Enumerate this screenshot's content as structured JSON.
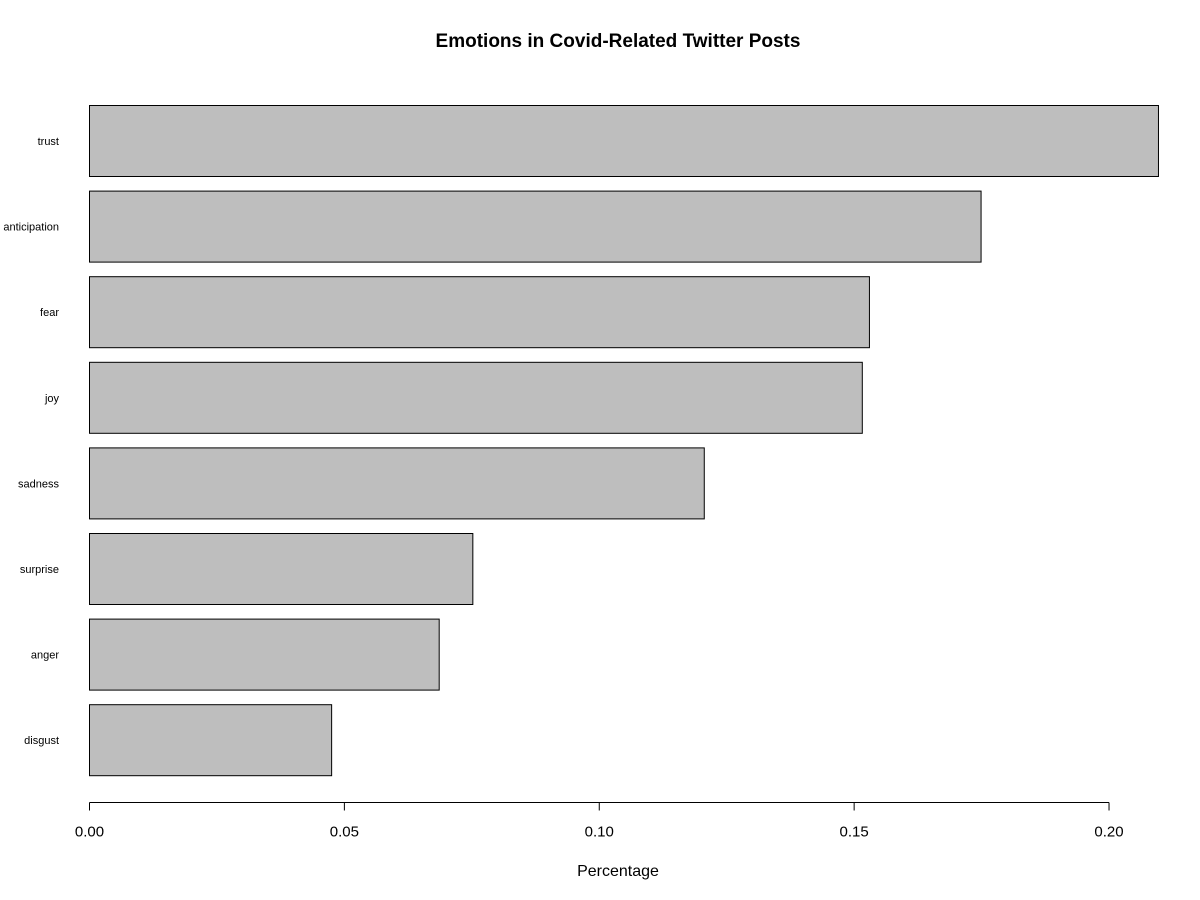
{
  "chart_data": {
    "type": "bar",
    "orientation": "horizontal",
    "title": "Emotions in Covid-Related Twitter Posts",
    "xlabel": "Percentage",
    "ylabel": "",
    "categories": [
      "trust",
      "anticipation",
      "fear",
      "joy",
      "sadness",
      "surprise",
      "anger",
      "disgust"
    ],
    "values": [
      0.2097,
      0.1749,
      0.153,
      0.1516,
      0.1206,
      0.0752,
      0.0686,
      0.0475
    ],
    "xlim": [
      0,
      0.21
    ],
    "x_ticks": [
      "0.00",
      "0.05",
      "0.10",
      "0.15",
      "0.20"
    ],
    "bar_color": "#bebebe",
    "grid": false,
    "legend": "none"
  }
}
